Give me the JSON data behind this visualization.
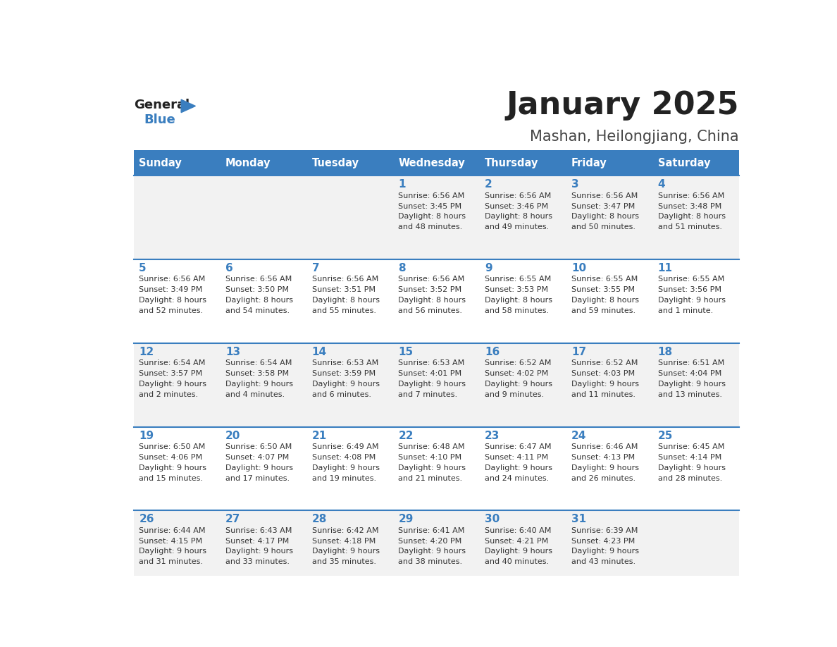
{
  "title": "January 2025",
  "subtitle": "Mashan, Heilongjiang, China",
  "days_of_week": [
    "Sunday",
    "Monday",
    "Tuesday",
    "Wednesday",
    "Thursday",
    "Friday",
    "Saturday"
  ],
  "header_bg": "#3a7ebf",
  "header_text": "#ffffff",
  "row_bg_odd": "#f2f2f2",
  "row_bg_even": "#ffffff",
  "day_number_color": "#3a7ebf",
  "cell_text_color": "#333333",
  "divider_color": "#3a7ebf",
  "title_color": "#222222",
  "subtitle_color": "#444444",
  "logo_general_color": "#222222",
  "logo_blue_color": "#3a7ebf",
  "calendar_data": [
    [
      {
        "day": "",
        "sunrise": "",
        "sunset": "",
        "daylight": ""
      },
      {
        "day": "",
        "sunrise": "",
        "sunset": "",
        "daylight": ""
      },
      {
        "day": "",
        "sunrise": "",
        "sunset": "",
        "daylight": ""
      },
      {
        "day": "1",
        "sunrise": "6:56 AM",
        "sunset": "3:45 PM",
        "daylight": "8 hours and 48 minutes."
      },
      {
        "day": "2",
        "sunrise": "6:56 AM",
        "sunset": "3:46 PM",
        "daylight": "8 hours and 49 minutes."
      },
      {
        "day": "3",
        "sunrise": "6:56 AM",
        "sunset": "3:47 PM",
        "daylight": "8 hours and 50 minutes."
      },
      {
        "day": "4",
        "sunrise": "6:56 AM",
        "sunset": "3:48 PM",
        "daylight": "8 hours and 51 minutes."
      }
    ],
    [
      {
        "day": "5",
        "sunrise": "6:56 AM",
        "sunset": "3:49 PM",
        "daylight": "8 hours and 52 minutes."
      },
      {
        "day": "6",
        "sunrise": "6:56 AM",
        "sunset": "3:50 PM",
        "daylight": "8 hours and 54 minutes."
      },
      {
        "day": "7",
        "sunrise": "6:56 AM",
        "sunset": "3:51 PM",
        "daylight": "8 hours and 55 minutes."
      },
      {
        "day": "8",
        "sunrise": "6:56 AM",
        "sunset": "3:52 PM",
        "daylight": "8 hours and 56 minutes."
      },
      {
        "day": "9",
        "sunrise": "6:55 AM",
        "sunset": "3:53 PM",
        "daylight": "8 hours and 58 minutes."
      },
      {
        "day": "10",
        "sunrise": "6:55 AM",
        "sunset": "3:55 PM",
        "daylight": "8 hours and 59 minutes."
      },
      {
        "day": "11",
        "sunrise": "6:55 AM",
        "sunset": "3:56 PM",
        "daylight": "9 hours and 1 minute."
      }
    ],
    [
      {
        "day": "12",
        "sunrise": "6:54 AM",
        "sunset": "3:57 PM",
        "daylight": "9 hours and 2 minutes."
      },
      {
        "day": "13",
        "sunrise": "6:54 AM",
        "sunset": "3:58 PM",
        "daylight": "9 hours and 4 minutes."
      },
      {
        "day": "14",
        "sunrise": "6:53 AM",
        "sunset": "3:59 PM",
        "daylight": "9 hours and 6 minutes."
      },
      {
        "day": "15",
        "sunrise": "6:53 AM",
        "sunset": "4:01 PM",
        "daylight": "9 hours and 7 minutes."
      },
      {
        "day": "16",
        "sunrise": "6:52 AM",
        "sunset": "4:02 PM",
        "daylight": "9 hours and 9 minutes."
      },
      {
        "day": "17",
        "sunrise": "6:52 AM",
        "sunset": "4:03 PM",
        "daylight": "9 hours and 11 minutes."
      },
      {
        "day": "18",
        "sunrise": "6:51 AM",
        "sunset": "4:04 PM",
        "daylight": "9 hours and 13 minutes."
      }
    ],
    [
      {
        "day": "19",
        "sunrise": "6:50 AM",
        "sunset": "4:06 PM",
        "daylight": "9 hours and 15 minutes."
      },
      {
        "day": "20",
        "sunrise": "6:50 AM",
        "sunset": "4:07 PM",
        "daylight": "9 hours and 17 minutes."
      },
      {
        "day": "21",
        "sunrise": "6:49 AM",
        "sunset": "4:08 PM",
        "daylight": "9 hours and 19 minutes."
      },
      {
        "day": "22",
        "sunrise": "6:48 AM",
        "sunset": "4:10 PM",
        "daylight": "9 hours and 21 minutes."
      },
      {
        "day": "23",
        "sunrise": "6:47 AM",
        "sunset": "4:11 PM",
        "daylight": "9 hours and 24 minutes."
      },
      {
        "day": "24",
        "sunrise": "6:46 AM",
        "sunset": "4:13 PM",
        "daylight": "9 hours and 26 minutes."
      },
      {
        "day": "25",
        "sunrise": "6:45 AM",
        "sunset": "4:14 PM",
        "daylight": "9 hours and 28 minutes."
      }
    ],
    [
      {
        "day": "26",
        "sunrise": "6:44 AM",
        "sunset": "4:15 PM",
        "daylight": "9 hours and 31 minutes."
      },
      {
        "day": "27",
        "sunrise": "6:43 AM",
        "sunset": "4:17 PM",
        "daylight": "9 hours and 33 minutes."
      },
      {
        "day": "28",
        "sunrise": "6:42 AM",
        "sunset": "4:18 PM",
        "daylight": "9 hours and 35 minutes."
      },
      {
        "day": "29",
        "sunrise": "6:41 AM",
        "sunset": "4:20 PM",
        "daylight": "9 hours and 38 minutes."
      },
      {
        "day": "30",
        "sunrise": "6:40 AM",
        "sunset": "4:21 PM",
        "daylight": "9 hours and 40 minutes."
      },
      {
        "day": "31",
        "sunrise": "6:39 AM",
        "sunset": "4:23 PM",
        "daylight": "9 hours and 43 minutes."
      },
      {
        "day": "",
        "sunrise": "",
        "sunset": "",
        "daylight": ""
      }
    ]
  ]
}
